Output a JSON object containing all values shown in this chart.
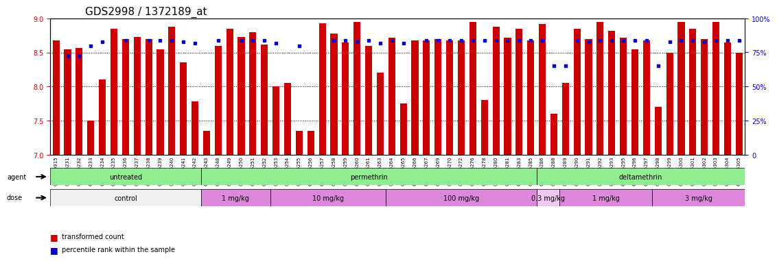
{
  "title": "GDS2998 / 1372189_at",
  "samples": [
    "GSM190915",
    "GSM195231",
    "GSM195232",
    "GSM195233",
    "GSM195234",
    "GSM195235",
    "GSM195236",
    "GSM195237",
    "GSM195238",
    "GSM195239",
    "GSM195240",
    "GSM195241",
    "GSM195242",
    "GSM195243",
    "GSM195248",
    "GSM195249",
    "GSM195250",
    "GSM195251",
    "GSM195252",
    "GSM195253",
    "GSM195254",
    "GSM195255",
    "GSM195256",
    "GSM195257",
    "GSM195258",
    "GSM195259",
    "GSM195260",
    "GSM195261",
    "GSM195263",
    "GSM195264",
    "GSM195265",
    "GSM195266",
    "GSM195267",
    "GSM195269",
    "GSM195270",
    "GSM195272",
    "GSM195276",
    "GSM195278",
    "GSM195280",
    "GSM195281",
    "GSM195283",
    "GSM195285",
    "GSM195286",
    "GSM195288",
    "GSM195289",
    "GSM195290",
    "GSM195291",
    "GSM195292",
    "GSM195293",
    "GSM195295",
    "GSM195296",
    "GSM195297",
    "GSM195298",
    "GSM195299",
    "GSM195300",
    "GSM195301",
    "GSM195302",
    "GSM195303",
    "GSM195304",
    "GSM195305"
  ],
  "bar_values": [
    8.68,
    8.55,
    8.57,
    7.5,
    8.1,
    8.85,
    8.7,
    8.73,
    8.7,
    8.55,
    8.88,
    8.35,
    7.78,
    7.35,
    8.6,
    8.85,
    8.73,
    8.8,
    8.62,
    8.0,
    8.05,
    7.35,
    7.35,
    8.93,
    8.78,
    8.65,
    8.95,
    8.6,
    8.2,
    8.72,
    7.75,
    8.68,
    8.68,
    8.7,
    8.68,
    8.68,
    8.95,
    7.8,
    8.88,
    8.72,
    8.85,
    8.68,
    8.92,
    7.6,
    8.05,
    8.85,
    8.7,
    8.95,
    8.82,
    8.72,
    8.55,
    8.68,
    7.7,
    8.5,
    8.95,
    8.85,
    8.7,
    8.95,
    8.65,
    8.5
  ],
  "dot_values": [
    null,
    72,
    72,
    80,
    83,
    null,
    84,
    null,
    84,
    84,
    84,
    83,
    82,
    null,
    84,
    null,
    84,
    84,
    84,
    82,
    null,
    80,
    null,
    null,
    84,
    84,
    83,
    84,
    82,
    84,
    82,
    null,
    84,
    84,
    84,
    84,
    84,
    84,
    84,
    84,
    84,
    84,
    84,
    65,
    65,
    84,
    83,
    84,
    84,
    84,
    84,
    84,
    65,
    83,
    84,
    84,
    83,
    84,
    84,
    84
  ],
  "ylim_left": [
    7.0,
    9.0
  ],
  "yticks_left": [
    7.0,
    7.5,
    8.0,
    8.5,
    9.0
  ],
  "ylim_right": [
    0,
    100
  ],
  "yticks_right": [
    0,
    25,
    50,
    75,
    100
  ],
  "bar_color": "#cc0000",
  "dot_color": "#0000cc",
  "agent_groups": [
    {
      "label": "untreated",
      "start": 0,
      "end": 13,
      "color": "#90ee90"
    },
    {
      "label": "permethrin",
      "start": 13,
      "end": 42,
      "color": "#90ee90"
    },
    {
      "label": "deltamethrin",
      "start": 42,
      "end": 60,
      "color": "#90ee90"
    }
  ],
  "dose_groups": [
    {
      "label": "control",
      "start": 0,
      "end": 13,
      "color": "#f0f0f0"
    },
    {
      "label": "1 mg/kg",
      "start": 13,
      "end": 19,
      "color": "#dd88dd"
    },
    {
      "label": "10 mg/kg",
      "start": 19,
      "end": 29,
      "color": "#dd88dd"
    },
    {
      "label": "100 mg/kg",
      "start": 29,
      "end": 42,
      "color": "#dd88dd"
    },
    {
      "label": "0.3 mg/kg",
      "start": 42,
      "end": 44,
      "color": "#f0c8f0"
    },
    {
      "label": "1 mg/kg",
      "start": 44,
      "end": 52,
      "color": "#dd88dd"
    },
    {
      "label": "3 mg/kg",
      "start": 52,
      "end": 60,
      "color": "#dd88dd"
    }
  ],
  "legend_items": [
    {
      "label": "transformed count",
      "color": "#cc0000",
      "marker": "s"
    },
    {
      "label": "percentile rank within the sample",
      "color": "#0000cc",
      "marker": "s"
    }
  ],
  "title_fontsize": 11,
  "tick_fontsize": 6,
  "label_fontsize": 8,
  "bar_width": 0.6
}
